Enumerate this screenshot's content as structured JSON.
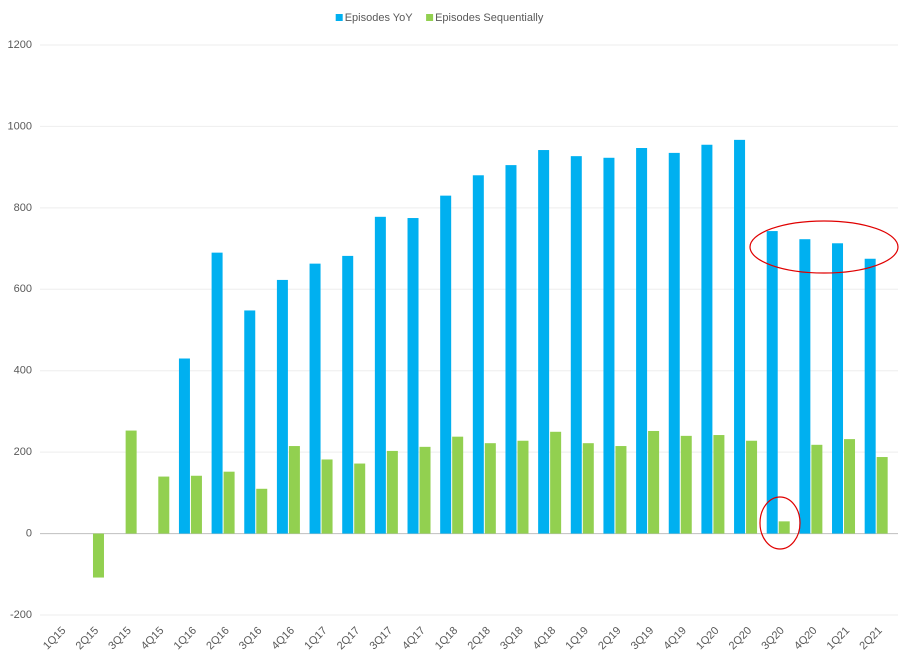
{
  "chart_data": {
    "type": "bar",
    "categories": [
      "1Q15",
      "2Q15",
      "3Q15",
      "4Q15",
      "1Q16",
      "2Q16",
      "3Q16",
      "4Q16",
      "1Q17",
      "2Q17",
      "3Q17",
      "4Q17",
      "1Q18",
      "2Q18",
      "3Q18",
      "4Q18",
      "1Q19",
      "2Q19",
      "3Q19",
      "4Q19",
      "1Q20",
      "2Q20",
      "3Q20",
      "4Q20",
      "1Q21",
      "2Q21"
    ],
    "series": [
      {
        "name": "Episodes YoY",
        "color": "#00b0f0",
        "values": [
          null,
          null,
          null,
          null,
          430,
          690,
          548,
          623,
          663,
          682,
          778,
          775,
          830,
          880,
          905,
          942,
          927,
          923,
          947,
          935,
          955,
          967,
          743,
          723,
          713,
          675
        ]
      },
      {
        "name": "Episodes Sequentially",
        "color": "#92d050",
        "values": [
          null,
          -108,
          253,
          140,
          142,
          152,
          110,
          215,
          182,
          172,
          203,
          213,
          238,
          222,
          228,
          250,
          222,
          215,
          252,
          240,
          242,
          228,
          30,
          218,
          232,
          188
        ]
      }
    ],
    "ylim": [
      -200,
      1200
    ],
    "yticks": [
      -200,
      0,
      200,
      400,
      600,
      800,
      1000,
      1200
    ],
    "grid": true,
    "legend": "top"
  }
}
